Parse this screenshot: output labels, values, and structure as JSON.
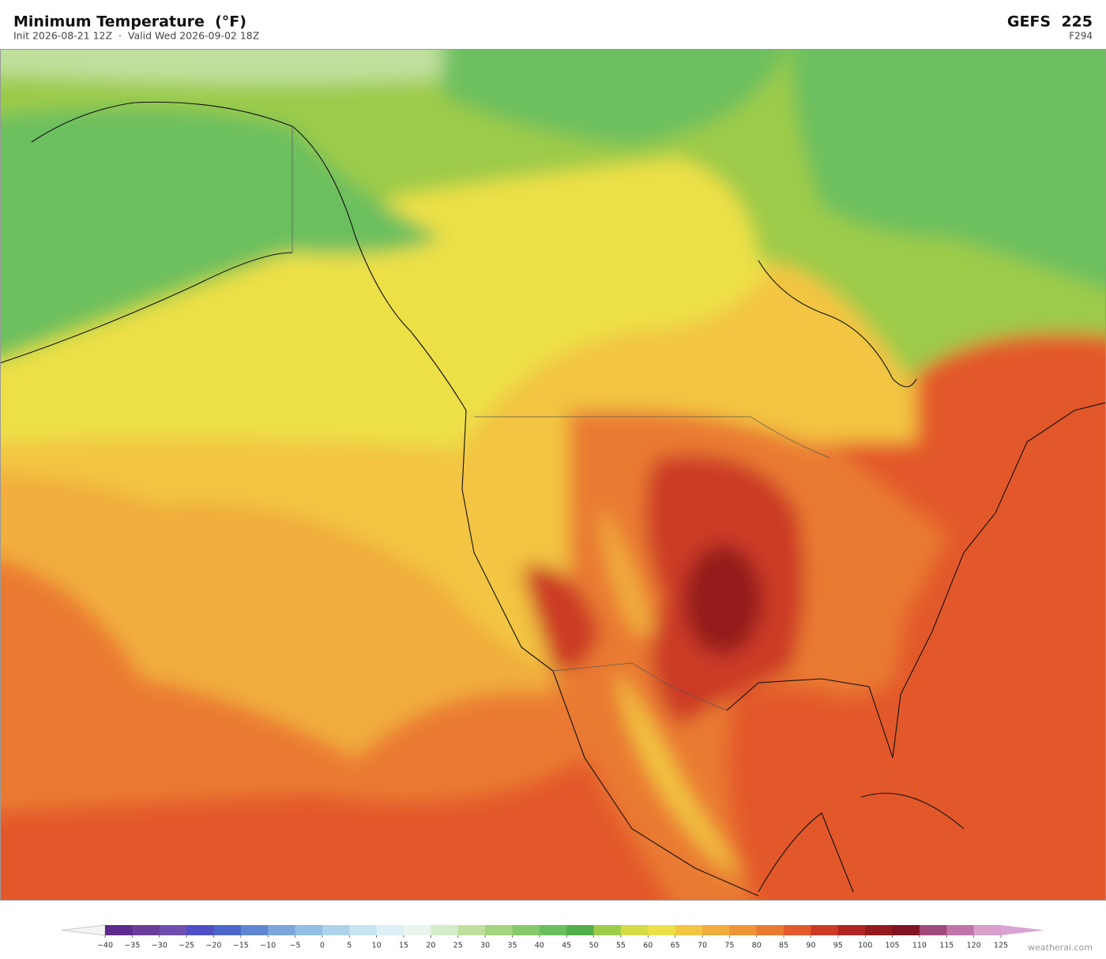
{
  "header": {
    "title": "Minimum Temperature  (°F)",
    "subtitle": "Init 2026-08-21 12Z  ·  Valid Wed 2026-09-02 18Z",
    "model": "GEFS  225",
    "forecast_hour": "F294"
  },
  "colorbar": {
    "ticks": [
      {
        "value": -40,
        "label": "−40"
      },
      {
        "value": -35,
        "label": "−35"
      },
      {
        "value": -30,
        "label": "−30"
      },
      {
        "value": -25,
        "label": "−25"
      },
      {
        "value": -20,
        "label": "−20"
      },
      {
        "value": -15,
        "label": "−15"
      },
      {
        "value": -10,
        "label": "−10"
      },
      {
        "value": -5,
        "label": "−5"
      },
      0,
      5,
      10,
      15,
      20,
      25,
      30,
      35,
      40,
      45,
      50,
      55,
      60,
      65,
      70,
      75,
      80,
      85,
      90,
      95,
      100,
      105,
      110,
      115,
      120,
      125
    ],
    "colors": [
      "#5b2a8c",
      "#6a3d9a",
      "#6f4fb0",
      "#4f4fc4",
      "#4a66c8",
      "#5f86d0",
      "#7aa6da",
      "#92bfe4",
      "#acd3ea",
      "#c6e3f0",
      "#dceff4",
      "#e8f4ec",
      "#d4ecc8",
      "#bfe09c",
      "#a3d57e",
      "#86c96a",
      "#6cbf5e",
      "#52b04c",
      "#9ccb4a",
      "#d3dc46",
      "#ede047",
      "#f3c542",
      "#f1ad3d",
      "#ed9436",
      "#e97a32",
      "#e3592c",
      "#cc3a27",
      "#b02422",
      "#951a1e",
      "#7e1520",
      "#a04a7c",
      "#c074a8",
      "#d9a0cc"
    ],
    "under_color": "#f4f4f4",
    "over_color": "#d9a3d3"
  },
  "footer": {
    "credit": "weatherai.com"
  }
}
